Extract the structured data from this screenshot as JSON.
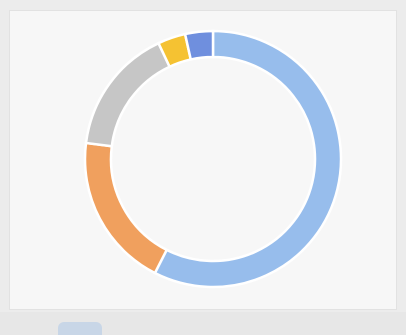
{
  "chart_data": {
    "type": "pie",
    "donut": true,
    "title": "",
    "legend": "none",
    "data_labels": "none",
    "slices": [
      {
        "value": 57.5,
        "color": "#97bdec"
      },
      {
        "value": 19.5,
        "color": "#f0a05e"
      },
      {
        "value": 16.0,
        "color": "#c6c6c6"
      },
      {
        "value": 3.5,
        "color": "#f5c232"
      },
      {
        "value": 3.5,
        "color": "#6f8fde"
      }
    ],
    "start_angle_deg": 0,
    "direction": "clockwise",
    "separator_color": "#ffffff"
  }
}
